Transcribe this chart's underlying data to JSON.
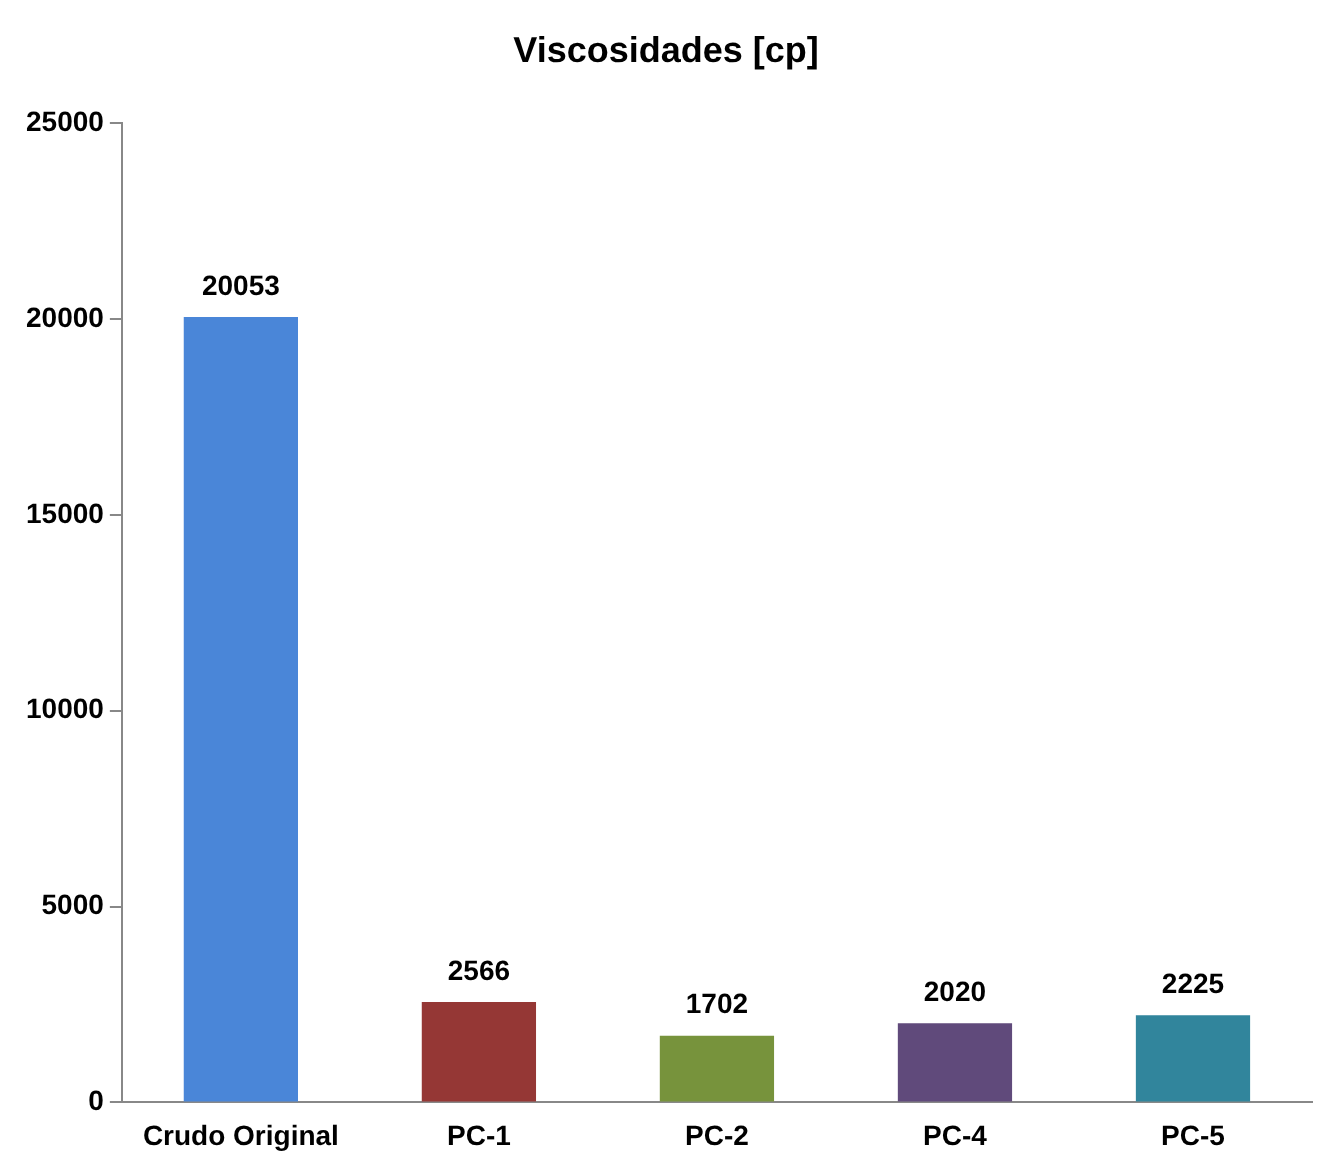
{
  "chart_data": {
    "type": "bar",
    "title": "Viscosidades [cp]",
    "categories": [
      "Crudo Original",
      "PC-1",
      "PC-2",
      "PC-4",
      "PC-5"
    ],
    "values": [
      20053,
      2566,
      1702,
      2020,
      2225
    ],
    "colors": [
      "#4a86d8",
      "#953735",
      "#77933c",
      "#604a7b",
      "#31859c"
    ],
    "ylim": [
      0,
      25000
    ],
    "yticks": [
      0,
      5000,
      10000,
      15000,
      20000,
      25000
    ],
    "grid": false,
    "legend": false,
    "data_labels": true
  }
}
